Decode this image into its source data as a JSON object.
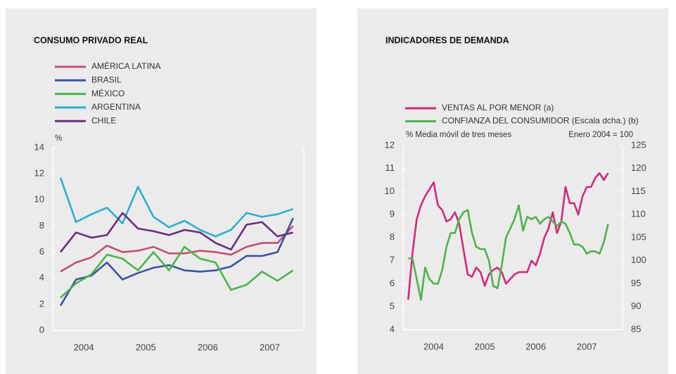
{
  "chart_data": [
    {
      "type": "line",
      "title": "CONSUMO PRIVADO REAL",
      "y_label": "%",
      "x": [
        2004.125,
        2004.375,
        2004.625,
        2004.875,
        2005.125,
        2005.375,
        2005.625,
        2005.875,
        2006.125,
        2006.375,
        2006.625,
        2006.875,
        2007.125,
        2007.375,
        2007.625,
        2007.875
      ],
      "xlim": [
        2004,
        2008.05
      ],
      "xticks": [
        {
          "value": 2004.5,
          "label": "2004"
        },
        {
          "value": 2005.5,
          "label": "2005"
        },
        {
          "value": 2006.5,
          "label": "2006"
        },
        {
          "value": 2007.5,
          "label": "2007"
        }
      ],
      "ylim": [
        0,
        14
      ],
      "yticks": [
        0,
        2,
        4,
        6,
        8,
        10,
        12,
        14
      ],
      "grid": false,
      "series": [
        {
          "name": "AMÉRICA LATINA",
          "color": "#c24f6c",
          "values": [
            4.5,
            5.2,
            5.6,
            6.5,
            6.0,
            6.1,
            6.4,
            5.9,
            5.9,
            6.1,
            6.0,
            5.8,
            6.4,
            6.7,
            6.7,
            8.0
          ]
        },
        {
          "name": "BRASIL",
          "color": "#3a54a0",
          "values": [
            1.9,
            3.9,
            4.2,
            5.2,
            3.9,
            4.4,
            4.8,
            5.0,
            4.6,
            4.5,
            4.6,
            4.9,
            5.7,
            5.7,
            6.0,
            8.6
          ]
        },
        {
          "name": "MÉXICO",
          "color": "#4db34d",
          "values": [
            2.5,
            3.6,
            4.3,
            5.8,
            5.5,
            4.6,
            6.0,
            4.6,
            6.4,
            5.5,
            5.2,
            3.1,
            3.5,
            4.5,
            3.8,
            4.6
          ]
        },
        {
          "name": "ARGENTINA",
          "color": "#2aafd2",
          "values": [
            11.7,
            8.3,
            8.9,
            9.4,
            8.2,
            11.0,
            8.7,
            7.9,
            8.4,
            7.7,
            7.2,
            7.7,
            9.0,
            8.7,
            8.9,
            9.3
          ]
        },
        {
          "name": "CHILE",
          "color": "#6a2c84",
          "values": [
            6.0,
            7.5,
            7.1,
            7.3,
            9.0,
            7.8,
            7.6,
            7.3,
            7.7,
            7.5,
            6.7,
            6.2,
            8.1,
            8.3,
            7.2,
            7.5
          ]
        }
      ]
    },
    {
      "type": "line",
      "title": "INDICADORES DE DEMANDA",
      "y_label": "% Media móvil de tres meses",
      "y2_label": "Enero 2004 = 100",
      "x": [
        2004,
        2004.083,
        2004.167,
        2004.25,
        2004.333,
        2004.417,
        2004.5,
        2004.583,
        2004.667,
        2004.75,
        2004.833,
        2004.917,
        2005,
        2005.083,
        2005.167,
        2005.25,
        2005.333,
        2005.417,
        2005.5,
        2005.583,
        2005.667,
        2005.75,
        2005.833,
        2005.917,
        2006,
        2006.083,
        2006.167,
        2006.25,
        2006.333,
        2006.417,
        2006.5,
        2006.583,
        2006.667,
        2006.75,
        2006.833,
        2006.917,
        2007,
        2007.083,
        2007.167,
        2007.25,
        2007.333,
        2007.417,
        2007.5,
        2007.583,
        2007.667,
        2007.75,
        2007.833,
        2007.917
      ],
      "xlim": [
        2003.9,
        2008.2
      ],
      "xticks": [
        {
          "value": 2004.5,
          "label": "2004"
        },
        {
          "value": 2005.5,
          "label": "2005"
        },
        {
          "value": 2006.5,
          "label": "2006"
        },
        {
          "value": 2007.5,
          "label": "2007"
        }
      ],
      "ylim": [
        4,
        12
      ],
      "yticks": [
        4,
        5,
        6,
        7,
        8,
        9,
        10,
        11,
        12
      ],
      "y2lim": [
        85,
        125
      ],
      "y2ticks": [
        85,
        90,
        95,
        100,
        105,
        110,
        115,
        120,
        125
      ],
      "grid": false,
      "series": [
        {
          "name": "VENTAS AL POR MENOR (a)",
          "color": "#d2297b",
          "values": [
            5.3,
            7.3,
            8.8,
            9.4,
            9.8,
            10.1,
            10.4,
            9.4,
            9.2,
            8.7,
            8.8,
            9.1,
            8.6,
            7.5,
            6.4,
            6.3,
            6.7,
            6.5,
            5.9,
            6.4,
            6.6,
            6.7,
            6.5,
            6.0,
            6.2,
            6.4,
            6.5,
            6.5,
            6.5,
            7.0,
            6.8,
            7.3,
            8.0,
            8.4,
            9.1,
            8.2,
            8.7,
            10.2,
            9.5,
            9.5,
            9.0,
            9.8,
            10.2,
            10.2,
            10.6,
            10.8,
            10.5,
            10.8
          ]
        },
        {
          "name": "CONFIANZA DEL CONSUMIDOR (Escala dcha.) (b)",
          "color": "#4db34d",
          "axis": "y2",
          "values": [
            100.5,
            100.5,
            96,
            91.5,
            98.5,
            96,
            95,
            95,
            98,
            103,
            106,
            106,
            109,
            110.5,
            111,
            106,
            103,
            102.5,
            102.5,
            100,
            94.5,
            94,
            99,
            105,
            107,
            109,
            112,
            106.5,
            109.5,
            109,
            109.5,
            108,
            109,
            109.5,
            108.5,
            107.5,
            108.5,
            108,
            106,
            103.5,
            103.5,
            103,
            101.5,
            102,
            102,
            101.5,
            104,
            108
          ]
        }
      ]
    }
  ]
}
